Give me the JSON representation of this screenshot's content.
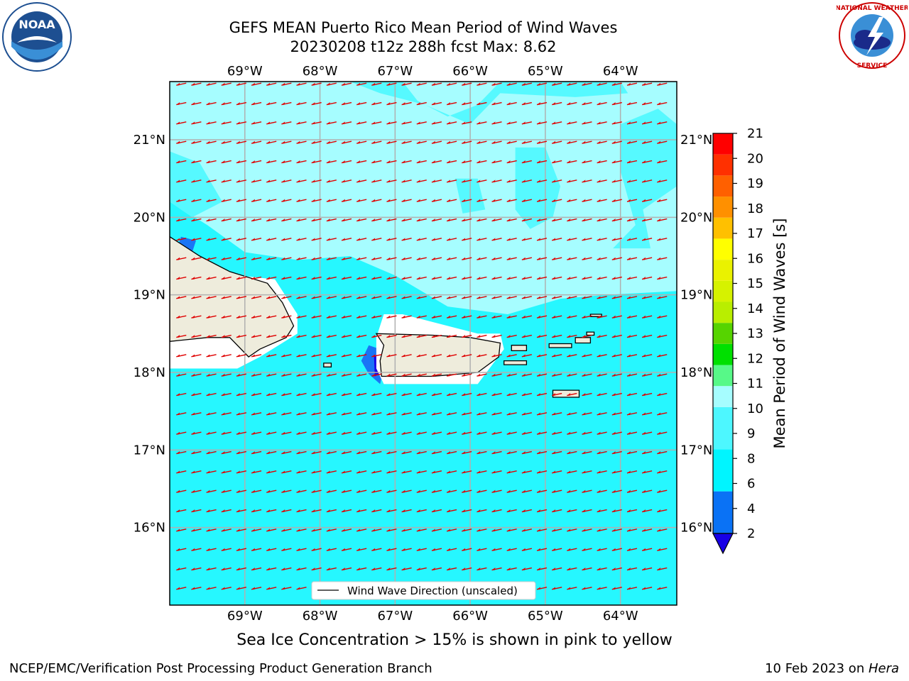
{
  "title_line1": "GEFS MEAN Puerto Rico Mean Period of Wind Waves",
  "title_line2": "20230208 t12z 288h fcst   Max: 8.62",
  "subcaption": "Sea Ice Concentration > 15% is shown in pink to yellow",
  "footer_left": "NCEP/EMC/Verification Post Processing Product Generation Branch",
  "footer_date": "10 Feb 2023 on ",
  "footer_machine": "Hera",
  "logos": {
    "left": "noaa-logo",
    "right": "nws-logo"
  },
  "map": {
    "lon_range": [
      -70.0,
      -63.25
    ],
    "lat_range": [
      15.0,
      21.75
    ],
    "lon_ticks": [
      {
        "value": -69,
        "label": "69°W"
      },
      {
        "value": -68,
        "label": "68°W"
      },
      {
        "value": -67,
        "label": "67°W"
      },
      {
        "value": -66,
        "label": "66°W"
      },
      {
        "value": -65,
        "label": "65°W"
      },
      {
        "value": -64,
        "label": "64°W"
      }
    ],
    "lat_ticks": [
      {
        "value": 16,
        "label": "16°N"
      },
      {
        "value": 17,
        "label": "17°N"
      },
      {
        "value": 18,
        "label": "18°N"
      },
      {
        "value": 19,
        "label": "19°N"
      },
      {
        "value": 20,
        "label": "20°N"
      },
      {
        "value": 21,
        "label": "21°N"
      }
    ],
    "legend_label": "Wind Wave Direction (unscaled)",
    "colors": {
      "ocean_main": "#26f7ff",
      "ocean_light": "#a6fdff",
      "ocean_mid": "#56f9ff",
      "land": "#eeecdc",
      "blue": "#1a74f5",
      "dark_blue": "#1800e6",
      "arrow": "#e00000",
      "grid": "#b0b0b0"
    }
  },
  "colorbar": {
    "label": "Mean Period of Wind Waves [s]",
    "range": [
      2,
      21
    ],
    "ticks": [
      "2",
      "4",
      "6",
      "8",
      "9",
      "10",
      "11",
      "12",
      "13",
      "14",
      "15",
      "16",
      "17",
      "18",
      "19",
      "20",
      "21"
    ],
    "bins": [
      {
        "from": 2,
        "to": 4,
        "color": "#0a72f5"
      },
      {
        "from": 4,
        "to": 6,
        "color": "#00f5ff"
      },
      {
        "from": 6,
        "to": 8,
        "color": "#4df7ff"
      },
      {
        "from": 8,
        "to": 9,
        "color": "#a6fdff"
      },
      {
        "from": 9,
        "to": 10,
        "color": "#57f988"
      },
      {
        "from": 10,
        "to": 11,
        "color": "#00e000"
      },
      {
        "from": 11,
        "to": 12,
        "color": "#56d400"
      },
      {
        "from": 12,
        "to": 13,
        "color": "#b9ee00"
      },
      {
        "from": 13,
        "to": 14,
        "color": "#d6f200"
      },
      {
        "from": 14,
        "to": 15,
        "color": "#eaf200"
      },
      {
        "from": 15,
        "to": 16,
        "color": "#ffff00"
      },
      {
        "from": 16,
        "to": 17,
        "color": "#ffc000"
      },
      {
        "from": 17,
        "to": 18,
        "color": "#ff9000"
      },
      {
        "from": 18,
        "to": 19,
        "color": "#ff6000"
      },
      {
        "from": 19,
        "to": 20,
        "color": "#ff3000"
      },
      {
        "from": 20,
        "to": 21,
        "color": "#ff0000"
      }
    ],
    "under_color": "#1800e6"
  }
}
